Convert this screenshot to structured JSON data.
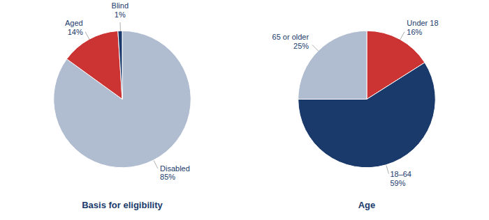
{
  "chart_data": [
    {
      "type": "pie",
      "title": "Basis for eligibility",
      "categories": [
        "Disabled",
        "Aged",
        "Blind"
      ],
      "values": [
        85,
        14,
        1
      ],
      "value_labels": [
        "85%",
        "14%",
        "1%"
      ],
      "colors": [
        "#b0bcd0",
        "#cc3333",
        "#1a3a6b"
      ],
      "data_labels": true
    },
    {
      "type": "pie",
      "title": "Age",
      "categories": [
        "Under 18",
        "18–64",
        "65 or older"
      ],
      "values": [
        16,
        59,
        25
      ],
      "value_labels": [
        "16%",
        "59%",
        "25%"
      ],
      "colors": [
        "#cc3333",
        "#1a3a6b",
        "#b0bcd0"
      ],
      "data_labels": true
    }
  ]
}
